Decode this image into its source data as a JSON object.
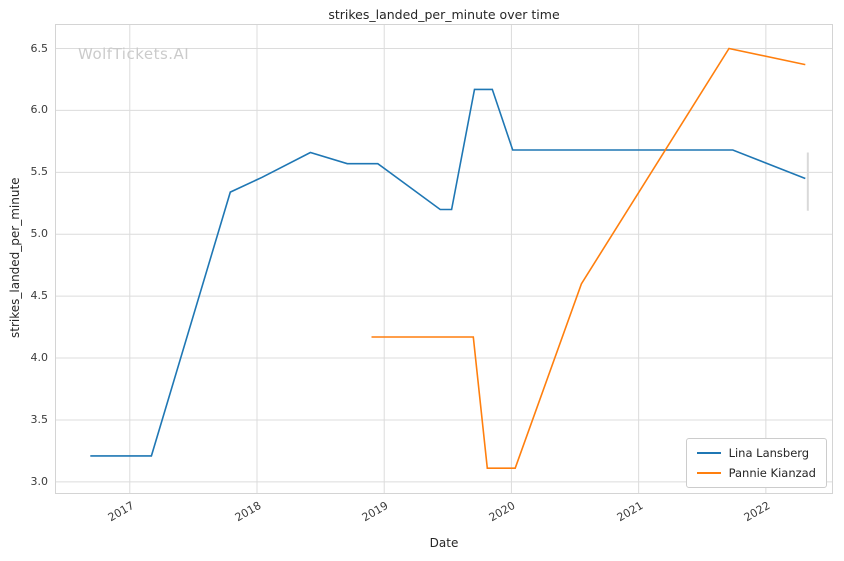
{
  "chart_data": {
    "type": "line",
    "title": "strikes_landed_per_minute over time",
    "xlabel": "Date",
    "ylabel": "strikes_landed_per_minute",
    "watermark": "WolfTickets.AI",
    "xlim": [
      2016.42,
      2022.52
    ],
    "ylim": [
      2.91,
      6.69
    ],
    "xticks": [
      2017,
      2018,
      2019,
      2020,
      2021,
      2022
    ],
    "yticks": [
      3.0,
      3.5,
      4.0,
      4.5,
      5.0,
      5.5,
      6.0,
      6.5
    ],
    "grid": true,
    "legend_position": "lower right",
    "colors": {
      "grid": "#dcdcdc",
      "spine": "#d4d4d4",
      "watermark": "#cbcbcb",
      "tick_text": "#3b3b3b"
    },
    "series": [
      {
        "name": "Lina Lansberg",
        "color": "#1f77b4",
        "points": [
          [
            2016.69,
            3.21
          ],
          [
            2017.17,
            3.21
          ],
          [
            2017.79,
            5.34
          ],
          [
            2018.04,
            5.46
          ],
          [
            2018.42,
            5.66
          ],
          [
            2018.71,
            5.57
          ],
          [
            2018.95,
            5.57
          ],
          [
            2019.44,
            5.2
          ],
          [
            2019.53,
            5.2
          ],
          [
            2019.71,
            6.17
          ],
          [
            2019.85,
            6.17
          ],
          [
            2020.01,
            5.68
          ],
          [
            2021.74,
            5.68
          ],
          [
            2022.31,
            5.45
          ]
        ]
      },
      {
        "name": "Pannie Kianzad",
        "color": "#ff7f0e",
        "points": [
          [
            2018.9,
            4.17
          ],
          [
            2019.7,
            4.17
          ],
          [
            2019.81,
            3.11
          ],
          [
            2020.03,
            3.11
          ],
          [
            2020.55,
            4.6
          ],
          [
            2021.71,
            6.5
          ],
          [
            2022.31,
            6.37
          ]
        ]
      }
    ],
    "end_marker": {
      "x": 2022.33,
      "y1": 5.19,
      "y2": 5.66,
      "color": "#d9d9d9"
    }
  }
}
